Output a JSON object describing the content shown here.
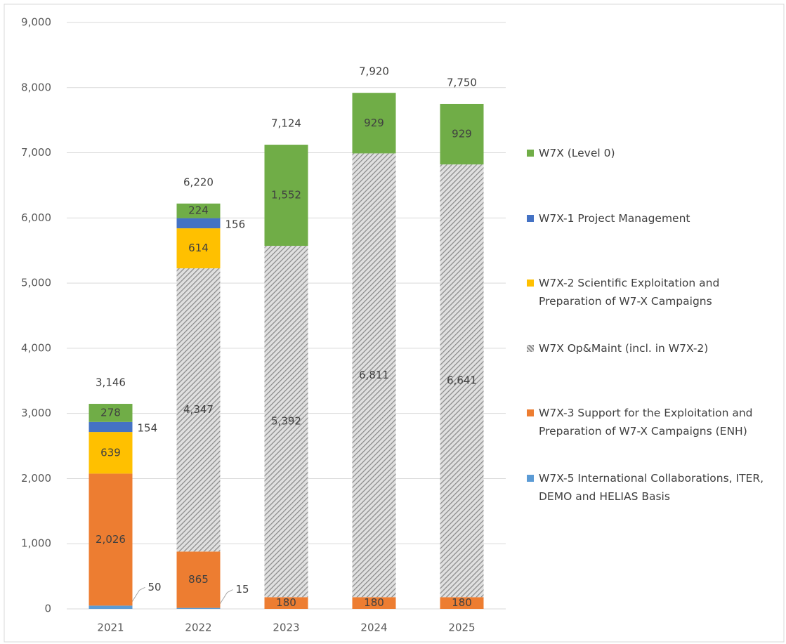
{
  "chart_data": {
    "type": "stacked_bar",
    "categories": [
      "2021",
      "2022",
      "2023",
      "2024",
      "2025"
    ],
    "series": [
      {
        "name": "W7X-5  International Collaborations, ITER, DEMO and HELIAS Basis",
        "color": "#5b9bd5",
        "values": [
          50,
          15,
          null,
          null,
          null
        ]
      },
      {
        "name": "W7X-3  Support for the Exploitation and Preparation of W7-X Campaigns (ENH)",
        "color": "#ed7d31",
        "values": [
          2026,
          865,
          180,
          180,
          180
        ],
        "value_labels": [
          "2,026",
          "865",
          "180",
          "180",
          "180"
        ]
      },
      {
        "name": "W7X Op&Maint  (incl. in W7X-2)",
        "color": "#a6a6a6",
        "hatch": true,
        "values": [
          null,
          4347,
          5392,
          6811,
          6641
        ],
        "value_labels": [
          null,
          "4,347",
          "5,392",
          "6,811",
          "6,641"
        ]
      },
      {
        "name": "W7X-2  Scientific Exploitation and Preparation of W7-X Campaigns",
        "color": "#ffc000",
        "values": [
          639,
          614,
          null,
          null,
          null
        ]
      },
      {
        "name": "W7X-1  Project Management",
        "color": "#4472c4",
        "values": [
          154,
          156,
          null,
          null,
          null
        ]
      },
      {
        "name": "W7X  (Level 0)",
        "color": "#70ad47",
        "values": [
          278,
          224,
          1552,
          929,
          929
        ],
        "value_labels": [
          "278",
          "224",
          "1,552",
          "929",
          "929"
        ]
      }
    ],
    "totals": {
      "values": [
        3146,
        6220,
        7124,
        7920,
        7750
      ],
      "value_labels": [
        "3,146",
        "6,220",
        "7,124",
        "7,920",
        "7,750"
      ]
    },
    "ylim": [
      0,
      9000
    ],
    "yticks": [
      0,
      {
        "value": 1000,
        "label": "1,000"
      },
      {
        "value": 2000,
        "label": "2,000"
      },
      {
        "value": 3000,
        "label": "3,000"
      },
      {
        "value": 4000,
        "label": "4,000"
      },
      {
        "value": 5000,
        "label": "5,000"
      },
      {
        "value": 6000,
        "label": "6,000"
      },
      {
        "value": 7000,
        "label": "7,000"
      },
      {
        "value": 8000,
        "label": "8,000"
      },
      {
        "value": 9000,
        "label": "9,000"
      }
    ],
    "grid": true,
    "legend": "right"
  }
}
